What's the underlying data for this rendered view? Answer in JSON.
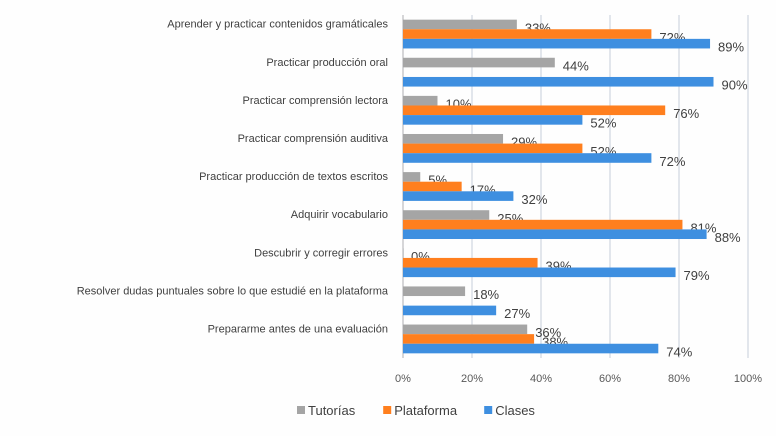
{
  "chart_data": {
    "type": "bar",
    "orientation": "horizontal",
    "categories": [
      "Aprender y practicar contenidos gramáticales",
      "Practicar producción oral",
      "Practicar comprensión lectora",
      "Practicar comprensión auditiva",
      "Practicar producción de textos escritos",
      "Adquirir vocabulario",
      "Descubrir y corregir errores",
      "Resolver dudas puntuales sobre lo que estudié en la plataforma",
      "Prepararme antes de una evaluación"
    ],
    "series": [
      {
        "name": "Tutorías",
        "color": "#a5a5a5",
        "values": [
          33,
          44,
          10,
          29,
          5,
          25,
          0,
          18,
          36
        ]
      },
      {
        "name": "Plataforma",
        "color": "#ff7f1e",
        "values": [
          72,
          null,
          76,
          52,
          17,
          81,
          39,
          null,
          38
        ]
      },
      {
        "name": "Clases",
        "color": "#3e8fe0",
        "values": [
          89,
          90,
          52,
          72,
          32,
          88,
          79,
          27,
          74
        ]
      }
    ],
    "xlim": [
      0,
      100
    ],
    "x_ticks": [
      "0%",
      "20%",
      "40%",
      "60%",
      "80%",
      "100%"
    ],
    "value_suffix": "%",
    "grid": true,
    "legend": "bottom",
    "title": "",
    "xlabel": "",
    "ylabel": ""
  }
}
